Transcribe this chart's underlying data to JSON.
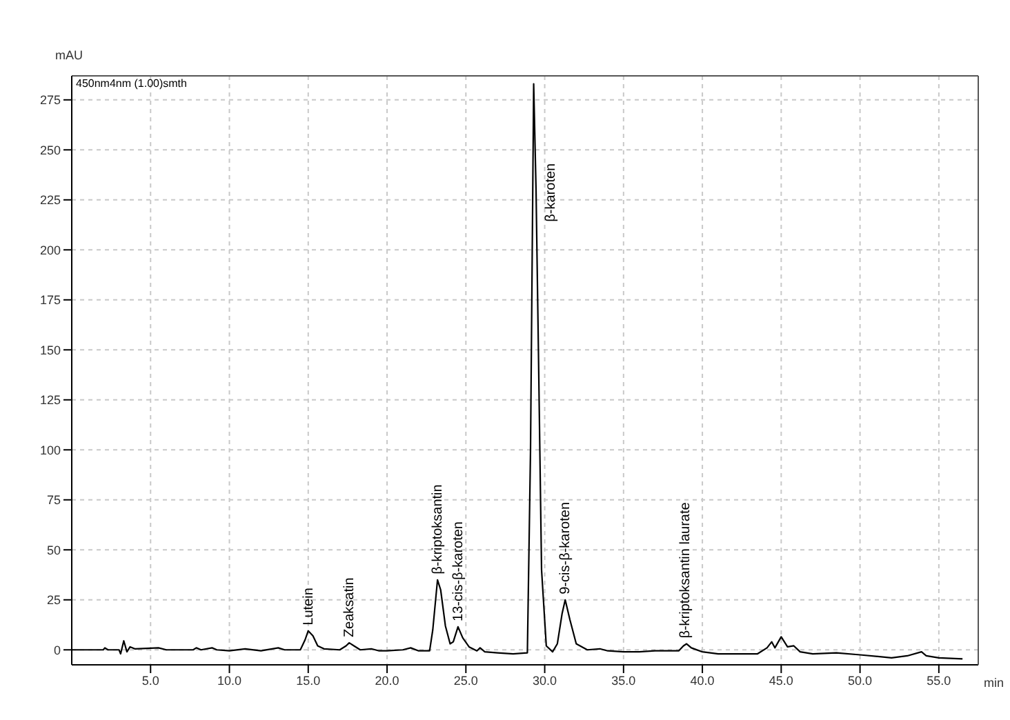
{
  "chart_data": {
    "type": "line",
    "xlabel": "min",
    "ylabel": "mAU",
    "x": [
      0,
      2,
      2.1,
      2.3,
      3.0,
      3.1,
      3.3,
      3.5,
      3.7,
      4,
      5.5,
      6,
      7.7,
      7.9,
      8.2,
      8.9,
      9.2,
      10,
      11,
      12,
      13.1,
      13.5,
      14.5,
      14.8,
      15.0,
      15.3,
      15.6,
      16,
      17,
      17.4,
      17.6,
      17.9,
      18.3,
      19,
      19.5,
      20,
      21,
      21.5,
      22,
      22.7,
      22.9,
      23.2,
      23.4,
      23.7,
      24,
      24.2,
      24.5,
      24.8,
      25.2,
      25.7,
      25.9,
      26.2,
      27,
      28,
      28.9,
      29.1,
      29.3,
      29.45,
      29.6,
      29.8,
      30.1,
      30.5,
      30.8,
      31.1,
      31.3,
      31.6,
      32,
      32.7,
      33.5,
      34,
      35,
      36,
      37,
      38,
      38.5,
      38.8,
      39,
      39.3,
      40,
      41,
      42,
      43.5,
      44.1,
      44.4,
      44.6,
      45,
      45.4,
      45.8,
      46.2,
      47,
      48.5,
      50,
      52,
      53,
      53.9,
      54.2,
      55,
      56.5
    ],
    "series": [
      {
        "color": "#000000",
        "values": [
          0,
          0,
          1,
          0,
          0,
          -2,
          4.5,
          -1,
          1.5,
          0.5,
          1,
          0,
          0,
          1,
          0,
          1,
          0,
          -0.5,
          0.5,
          -0.5,
          1,
          0,
          0,
          5,
          9.5,
          7,
          2,
          0.5,
          0,
          2,
          3.5,
          2,
          0,
          0.5,
          -0.5,
          -0.5,
          0,
          1,
          -0.5,
          -0.5,
          10,
          35,
          30,
          12,
          3,
          4,
          11.5,
          6,
          1.5,
          -0.5,
          1,
          -1,
          -1.5,
          -2,
          -1.5,
          100,
          283,
          230,
          150,
          40,
          2,
          -1,
          3,
          18,
          25,
          15,
          3,
          0,
          0.5,
          -0.5,
          -1,
          -1,
          -0.5,
          -0.5,
          -0.5,
          2,
          3,
          1,
          -1,
          -2,
          -2,
          -2,
          1,
          4,
          1,
          6.5,
          1.5,
          2,
          -1,
          -2,
          -1.5,
          -2.5,
          -4,
          -3,
          -1,
          -3,
          -4,
          -4.5
        ]
      }
    ],
    "xlim": [
      0,
      57.5
    ],
    "xticks": [
      {
        "value": 5,
        "label": "5.0"
      },
      {
        "value": 10,
        "label": "10.0"
      },
      {
        "value": 15,
        "label": "15.0"
      },
      {
        "value": 20,
        "label": "20.0"
      },
      {
        "value": 25,
        "label": "25.0"
      },
      {
        "value": 30,
        "label": "30.0"
      },
      {
        "value": 35,
        "label": "35.0"
      },
      {
        "value": 40,
        "label": "40.0"
      },
      {
        "value": 45,
        "label": "45.0"
      },
      {
        "value": 50,
        "label": "50.0"
      },
      {
        "value": 55,
        "label": "55.0"
      }
    ],
    "ylim": [
      -7.5,
      287
    ],
    "yticks": [
      0,
      25,
      50,
      75,
      100,
      125,
      150,
      175,
      200,
      225,
      250,
      275
    ],
    "grid": true,
    "marker": "none",
    "line_style": "solid",
    "annotations": [
      "450nm4nm (1.00)smth",
      {
        "text": "Lutein",
        "x": 15.0,
        "y": 9.5
      },
      {
        "text": "Zeaksatin",
        "x": 17.6,
        "y": 3.5
      },
      {
        "text": "β-kriptoksantin",
        "x": 23.2,
        "y": 35
      },
      {
        "text": "13-cis-β-karoten",
        "x": 24.5,
        "y": 11.5
      },
      {
        "text": "β-karoten",
        "x": 29.5,
        "y": 214
      },
      {
        "text": "9-cis-β-karoten",
        "x": 31.3,
        "y": 25
      },
      {
        "text": "β-kriptoksantin laurate",
        "x": 38.9,
        "y": 3
      }
    ]
  }
}
